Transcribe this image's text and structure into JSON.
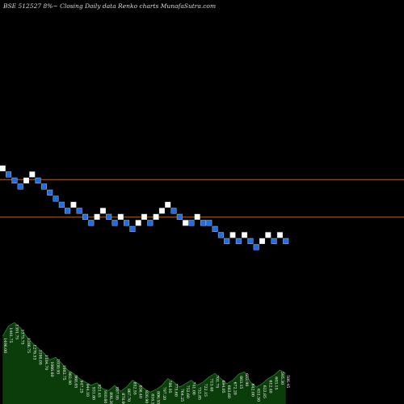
{
  "chart_data": {
    "type": "renko",
    "title": "BSE 512527 8%~ Closing Daily data Renko charts MunafaSutra.com",
    "colors": {
      "background": "#000000",
      "up_brick": "#ffffff",
      "down_brick": "#1e6fe6",
      "brick_edge": "#cfd6e0",
      "reference_line": "#b5651d",
      "volume_fill": "#0b3d0b",
      "volume_line": "#2e7d32"
    },
    "grid": false,
    "bricks": [
      {
        "dir": "up",
        "level": 0
      },
      {
        "dir": "down",
        "level": 1
      },
      {
        "dir": "down",
        "level": 2
      },
      {
        "dir": "down",
        "level": 3
      },
      {
        "dir": "up",
        "level": 2
      },
      {
        "dir": "up",
        "level": 1
      },
      {
        "dir": "down",
        "level": 2
      },
      {
        "dir": "down",
        "level": 3
      },
      {
        "dir": "down",
        "level": 4
      },
      {
        "dir": "down",
        "level": 5
      },
      {
        "dir": "down",
        "level": 6
      },
      {
        "dir": "down",
        "level": 7
      },
      {
        "dir": "up",
        "level": 6
      },
      {
        "dir": "down",
        "level": 7
      },
      {
        "dir": "down",
        "level": 8
      },
      {
        "dir": "down",
        "level": 9
      },
      {
        "dir": "up",
        "level": 8
      },
      {
        "dir": "up",
        "level": 7
      },
      {
        "dir": "down",
        "level": 8
      },
      {
        "dir": "down",
        "level": 9
      },
      {
        "dir": "up",
        "level": 8
      },
      {
        "dir": "down",
        "level": 9
      },
      {
        "dir": "down",
        "level": 10
      },
      {
        "dir": "up",
        "level": 9
      },
      {
        "dir": "up",
        "level": 8
      },
      {
        "dir": "down",
        "level": 9
      },
      {
        "dir": "up",
        "level": 8
      },
      {
        "dir": "up",
        "level": 7
      },
      {
        "dir": "up",
        "level": 6
      },
      {
        "dir": "down",
        "level": 7
      },
      {
        "dir": "down",
        "level": 8
      },
      {
        "dir": "up",
        "level": 9
      },
      {
        "dir": "down",
        "level": 9
      },
      {
        "dir": "up",
        "level": 8
      },
      {
        "dir": "down",
        "level": 9
      },
      {
        "dir": "down",
        "level": 9
      },
      {
        "dir": "down",
        "level": 10
      },
      {
        "dir": "down",
        "level": 11
      },
      {
        "dir": "down",
        "level": 12
      },
      {
        "dir": "up",
        "level": 11
      },
      {
        "dir": "down",
        "level": 12
      },
      {
        "dir": "up",
        "level": 11
      },
      {
        "dir": "down",
        "level": 12
      },
      {
        "dir": "down",
        "level": 13
      },
      {
        "dir": "up",
        "level": 12
      },
      {
        "dir": "up",
        "level": 11
      },
      {
        "dir": "down",
        "level": 12
      },
      {
        "dir": "up",
        "level": 11
      },
      {
        "dir": "down",
        "level": 12
      }
    ],
    "reference_lines": [
      {
        "level": 1.8
      },
      {
        "level": 8.0
      }
    ],
    "volume": {
      "values": [
        80,
        92,
        96,
        90,
        80,
        72,
        66,
        60,
        52,
        55,
        48,
        40,
        36,
        30,
        26,
        22,
        25,
        18,
        16,
        22,
        15,
        20,
        28,
        24,
        18,
        14,
        17,
        22,
        30,
        26,
        20,
        24,
        28,
        22,
        26,
        32,
        36,
        30,
        24,
        28,
        35,
        38,
        26,
        20,
        24,
        30,
        34,
        40,
        36
      ],
      "ylim": [
        0,
        100
      ],
      "labels": [
        "1496.00",
        "1441.75",
        "1391.75",
        "1375.75",
        "1286.75",
        "1276.53",
        "1190.05",
        "1184.70",
        "1066.60",
        "1030.95",
        "1002.75",
        "982.90",
        "968.05",
        "947.25",
        "944.10",
        "931.80",
        "921.45",
        "910.60",
        "898.30",
        "887.95",
        "878.00",
        "867.70",
        "852.55",
        "836.40",
        "826.90",
        "816.15",
        "806.55",
        "797.20",
        "786.95",
        "775.60",
        "764.25",
        "752.60",
        "741.00",
        "732.85",
        "722.15",
        "713.40",
        "701.75",
        "694.05",
        "683.60",
        "672.20",
        "663.15",
        "652.90",
        "642.00",
        "631.50",
        "622.85",
        "612.40",
        "603.15",
        "595.30",
        "586.45"
      ]
    }
  }
}
